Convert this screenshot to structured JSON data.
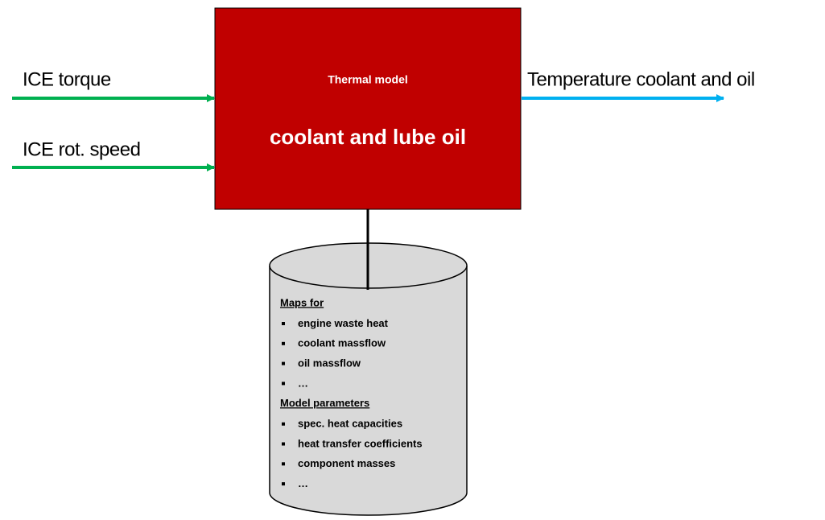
{
  "inputs": [
    {
      "label": "ICE torque"
    },
    {
      "label": "ICE rot. speed"
    }
  ],
  "output": {
    "label": "Temperature coolant and oil"
  },
  "model": {
    "title": "Thermal model",
    "subtitle": "coolant and lube oil"
  },
  "database": {
    "sections": [
      {
        "heading": "Maps for",
        "items": [
          "engine waste heat",
          "coolant massflow",
          "oil massflow",
          "…"
        ]
      },
      {
        "heading": "Model parameters",
        "items": [
          "spec. heat capacities",
          "heat transfer coefficients",
          "component masses",
          "…"
        ]
      }
    ]
  }
}
